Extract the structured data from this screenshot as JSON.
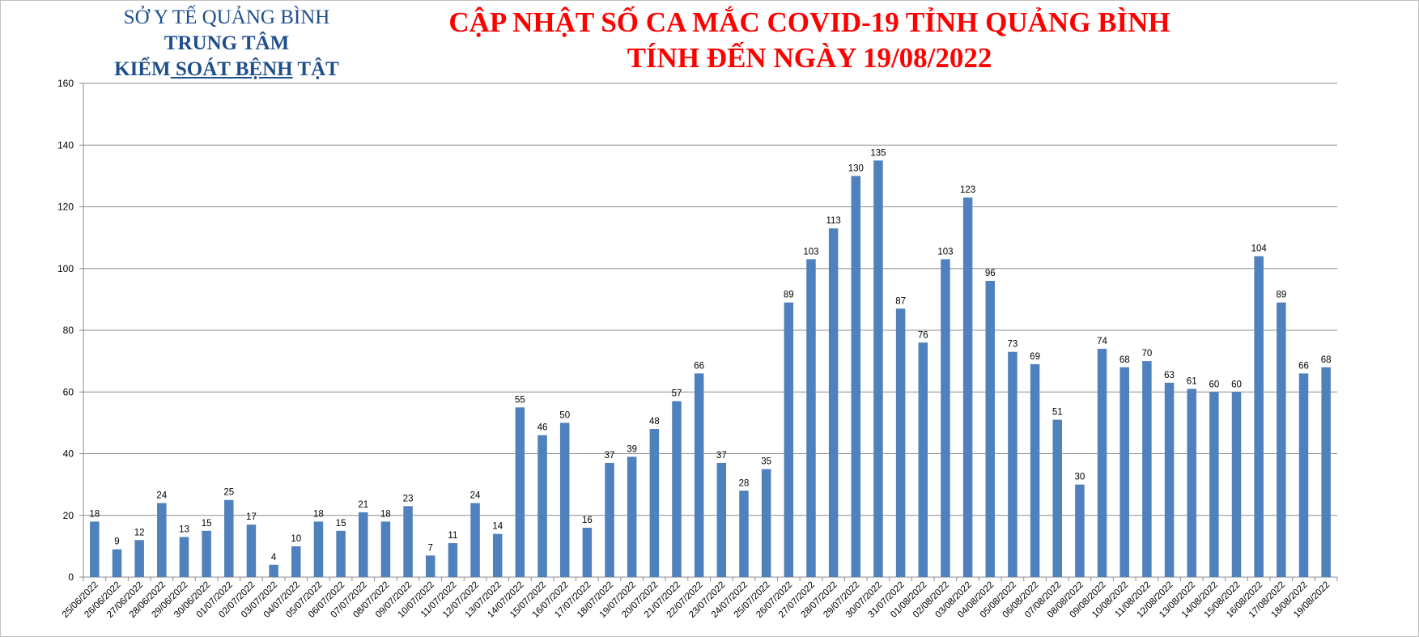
{
  "header": {
    "org_line1": "SỞ Y TẾ QUẢNG BÌNH",
    "org_line2": "TRUNG TÂM",
    "org_line3_a": "KIỂM",
    "org_line3_b": " SOÁT BỆNH",
    "org_line3_c": " TẬT",
    "title_line1": "CẬP NHẬT SỐ CA MẮC COVID-19 TỈNH QUẢNG BÌNH",
    "title_line2": "TÍNH ĐẾN NGÀY 19/08/2022"
  },
  "chart_data": {
    "type": "bar",
    "categories": [
      "25/06/2022",
      "26/06/2022",
      "27/06/2022",
      "28/06/2022",
      "29/06/2022",
      "30/06/2022",
      "01/07/2022",
      "02/07/2022",
      "03/07/2022",
      "04/07/2022",
      "05/07/2022",
      "06/07/2022",
      "07/07/2022",
      "08/07/2022",
      "09/07/2022",
      "10/07/2022",
      "11/07/2022",
      "12/07/2022",
      "13/07/2022",
      "14/07/2022",
      "15/07/2022",
      "16/07/2022",
      "17/07/2022",
      "18/07/2022",
      "19/07/2022",
      "20/07/2022",
      "21/07/2022",
      "22/07/2022",
      "23/07/2022",
      "24/07/2022",
      "25/07/2022",
      "26/07/2022",
      "27/07/2022",
      "28/07/2022",
      "29/07/2022",
      "30/07/2022",
      "31/07/2022",
      "01/08/2022",
      "02/08/2022",
      "03/08/2022",
      "04/08/2022",
      "05/08/2022",
      "06/08/2022",
      "07/08/2022",
      "08/08/2022",
      "09/08/2022",
      "10/08/2022",
      "11/08/2022",
      "12/08/2022",
      "13/08/2022",
      "14/08/2022",
      "15/08/2022",
      "16/08/2022",
      "17/08/2022",
      "18/08/2022",
      "19/08/2022"
    ],
    "values": [
      18,
      9,
      12,
      24,
      13,
      15,
      25,
      17,
      4,
      10,
      18,
      15,
      21,
      18,
      23,
      7,
      11,
      24,
      14,
      55,
      46,
      50,
      16,
      37,
      39,
      48,
      57,
      66,
      37,
      28,
      35,
      89,
      103,
      113,
      130,
      135,
      87,
      76,
      103,
      123,
      96,
      73,
      69,
      51,
      30,
      74,
      68,
      70,
      63,
      61,
      60,
      60,
      104,
      89,
      66,
      68
    ],
    "ylim": [
      0,
      160
    ],
    "yticks": [
      0,
      20,
      40,
      60,
      80,
      100,
      120,
      140,
      160
    ],
    "grid": true,
    "bar_color": "#4f81bd",
    "grid_color": "#8c8c8c",
    "title": "",
    "xlabel": "",
    "ylabel": ""
  }
}
